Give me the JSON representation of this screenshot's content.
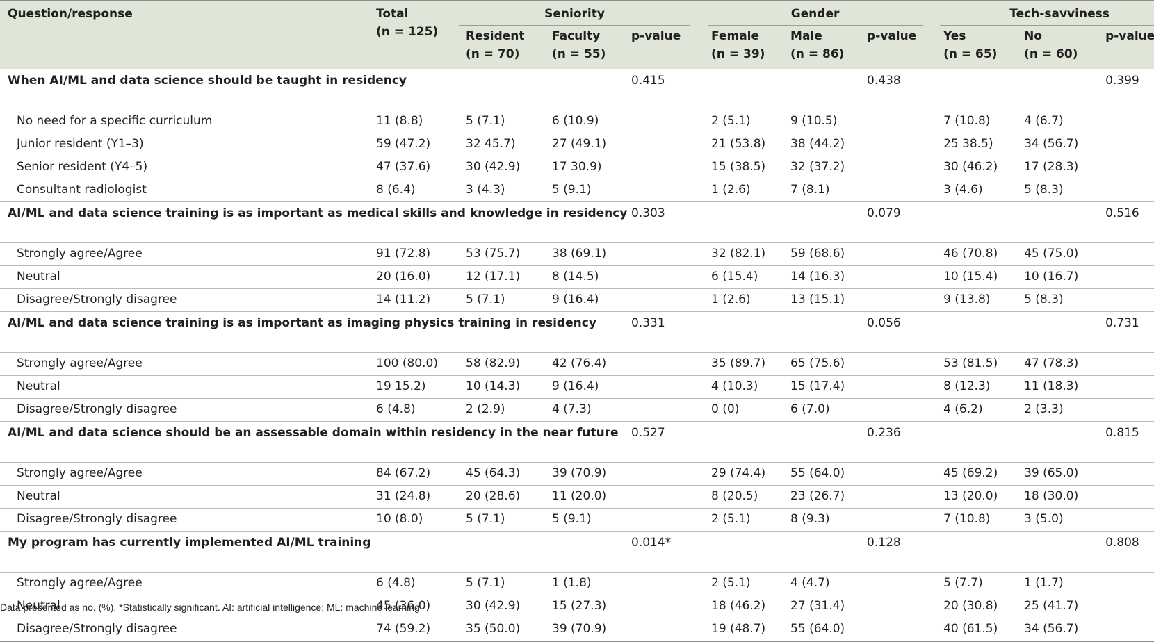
{
  "header": {
    "question": "Question/response",
    "total_label": "Total",
    "total_n": "(n = 125)",
    "groups": [
      {
        "label": "Seniority",
        "cols": [
          {
            "label": "Resident",
            "n": "(n = 70)"
          },
          {
            "label": "Faculty",
            "n": "(n = 55)"
          },
          {
            "label": "p-value",
            "n": ""
          }
        ]
      },
      {
        "label": "Gender",
        "cols": [
          {
            "label": "Female",
            "n": "(n = 39)"
          },
          {
            "label": "Male",
            "n": "(n = 86)"
          },
          {
            "label": "p-value",
            "n": ""
          }
        ]
      },
      {
        "label": "Tech-savviness",
        "cols": [
          {
            "label": "Yes",
            "n": "(n = 65)"
          },
          {
            "label": "No",
            "n": "(n = 60)"
          },
          {
            "label": "p-value",
            "n": ""
          }
        ]
      }
    ]
  },
  "questions": [
    {
      "text": "When AI/ML and data science should be taught in residency",
      "p": [
        "0.415",
        "0.438",
        "0.399"
      ],
      "rows": [
        {
          "label": "No need for a specific curriculum",
          "values": [
            "11 (8.8)",
            "5 (7.1)",
            "6 (10.9)",
            "2 (5.1)",
            "9 (10.5)",
            "7 (10.8)",
            "4 (6.7)"
          ]
        },
        {
          "label": "Junior resident (Y1–3)",
          "values": [
            "59 (47.2)",
            "32 45.7)",
            "27 (49.1)",
            "21 (53.8)",
            "38 (44.2)",
            "25 38.5)",
            "34 (56.7)"
          ]
        },
        {
          "label": "Senior resident (Y4–5)",
          "values": [
            "47 (37.6)",
            "30 (42.9)",
            "17 30.9)",
            "15 (38.5)",
            "32 (37.2)",
            "30 (46.2)",
            "17 (28.3)"
          ]
        },
        {
          "label": "Consultant radiologist",
          "values": [
            "8 (6.4)",
            "3 (4.3)",
            "5 (9.1)",
            "1 (2.6)",
            "7 (8.1)",
            "3 (4.6)",
            "5 (8.3)"
          ]
        }
      ]
    },
    {
      "text": "AI/ML and data science training is as important as medical skills and knowledge in residency",
      "p": [
        "0.303",
        "0.079",
        "0.516"
      ],
      "rows": [
        {
          "label": "Strongly  agree/Agree",
          "values": [
            "91 (72.8)",
            "53 (75.7)",
            "38 (69.1)",
            "32 (82.1)",
            "59 (68.6)",
            "46 (70.8)",
            "45 (75.0)"
          ]
        },
        {
          "label": "Neutral",
          "values": [
            "20 (16.0)",
            "12 (17.1)",
            "8 (14.5)",
            "6 (15.4)",
            "14 (16.3)",
            "10 (15.4)",
            "10 (16.7)"
          ]
        },
        {
          "label": "Disagree/Strongly disagree",
          "values": [
            "14 (11.2)",
            "5 (7.1)",
            "9 (16.4)",
            "1 (2.6)",
            "13 (15.1)",
            "9 (13.8)",
            "5 (8.3)"
          ]
        }
      ]
    },
    {
      "text": "AI/ML and data science training is as important as imaging physics training in residency",
      "p": [
        "0.331",
        "0.056",
        "0.731"
      ],
      "rows": [
        {
          "label": "Strongly agree/Agree",
          "values": [
            "100 (80.0)",
            "58 (82.9)",
            "42 (76.4)",
            "35 (89.7)",
            "65 (75.6)",
            "53 (81.5)",
            "47 (78.3)"
          ]
        },
        {
          "label": "Neutral",
          "values": [
            "19 15.2)",
            "10 (14.3)",
            "9 (16.4)",
            "4 (10.3)",
            "15 (17.4)",
            "8 (12.3)",
            "11 (18.3)"
          ]
        },
        {
          "label": "Disagree/Strongly disagree",
          "values": [
            "6 (4.8)",
            "2 (2.9)",
            "4 (7.3)",
            "0 (0)",
            "6 (7.0)",
            "4 (6.2)",
            "2 (3.3)"
          ]
        }
      ]
    },
    {
      "text": "AI/ML and data science should be an assessable domain within residency in the near future",
      "p": [
        "0.527",
        "0.236",
        "0.815"
      ],
      "rows": [
        {
          "label": "Strongly agree/Agree",
          "values": [
            "84 (67.2)",
            "45 (64.3)",
            "39 (70.9)",
            "29 (74.4)",
            "55 (64.0)",
            "45 (69.2)",
            "39 (65.0)"
          ]
        },
        {
          "label": "Neutral",
          "values": [
            "31 (24.8)",
            "20 (28.6)",
            "11 (20.0)",
            "8 (20.5)",
            "23 (26.7)",
            "13 (20.0)",
            "18 (30.0)"
          ]
        },
        {
          "label": "Disagree/Strongly disagree",
          "values": [
            "10 (8.0)",
            "5 (7.1)",
            "5 (9.1)",
            "2 (5.1)",
            "8 (9.3)",
            "7 (10.8)",
            "3 (5.0)"
          ]
        }
      ]
    },
    {
      "text": "My program has currently implemented AI/ML training",
      "p": [
        "0.014*",
        "0.128",
        "0.808"
      ],
      "rows": [
        {
          "label": "Strongly agree/Agree",
          "values": [
            "6 (4.8)",
            "5 (7.1)",
            "1 (1.8)",
            "2 (5.1)",
            "4 (4.7)",
            "5 (7.7)",
            "1 (1.7)"
          ]
        },
        {
          "label": "Neutral",
          "values": [
            "45 (36.0)",
            "30 (42.9)",
            "15 (27.3)",
            "18 (46.2)",
            "27 (31.4)",
            "20 (30.8)",
            "25 (41.7)"
          ]
        },
        {
          "label": "Disagree/Strongly disagree",
          "values": [
            "74 (59.2)",
            "35 (50.0)",
            "39 (70.9)",
            "19 (48.7)",
            "55 (64.0)",
            "40 (61.5)",
            "34 (56.7)"
          ]
        }
      ]
    }
  ],
  "footnote": "Data presented as no. (%). *Statistically significant. AI: artificial intelligence; ML: machine learning"
}
